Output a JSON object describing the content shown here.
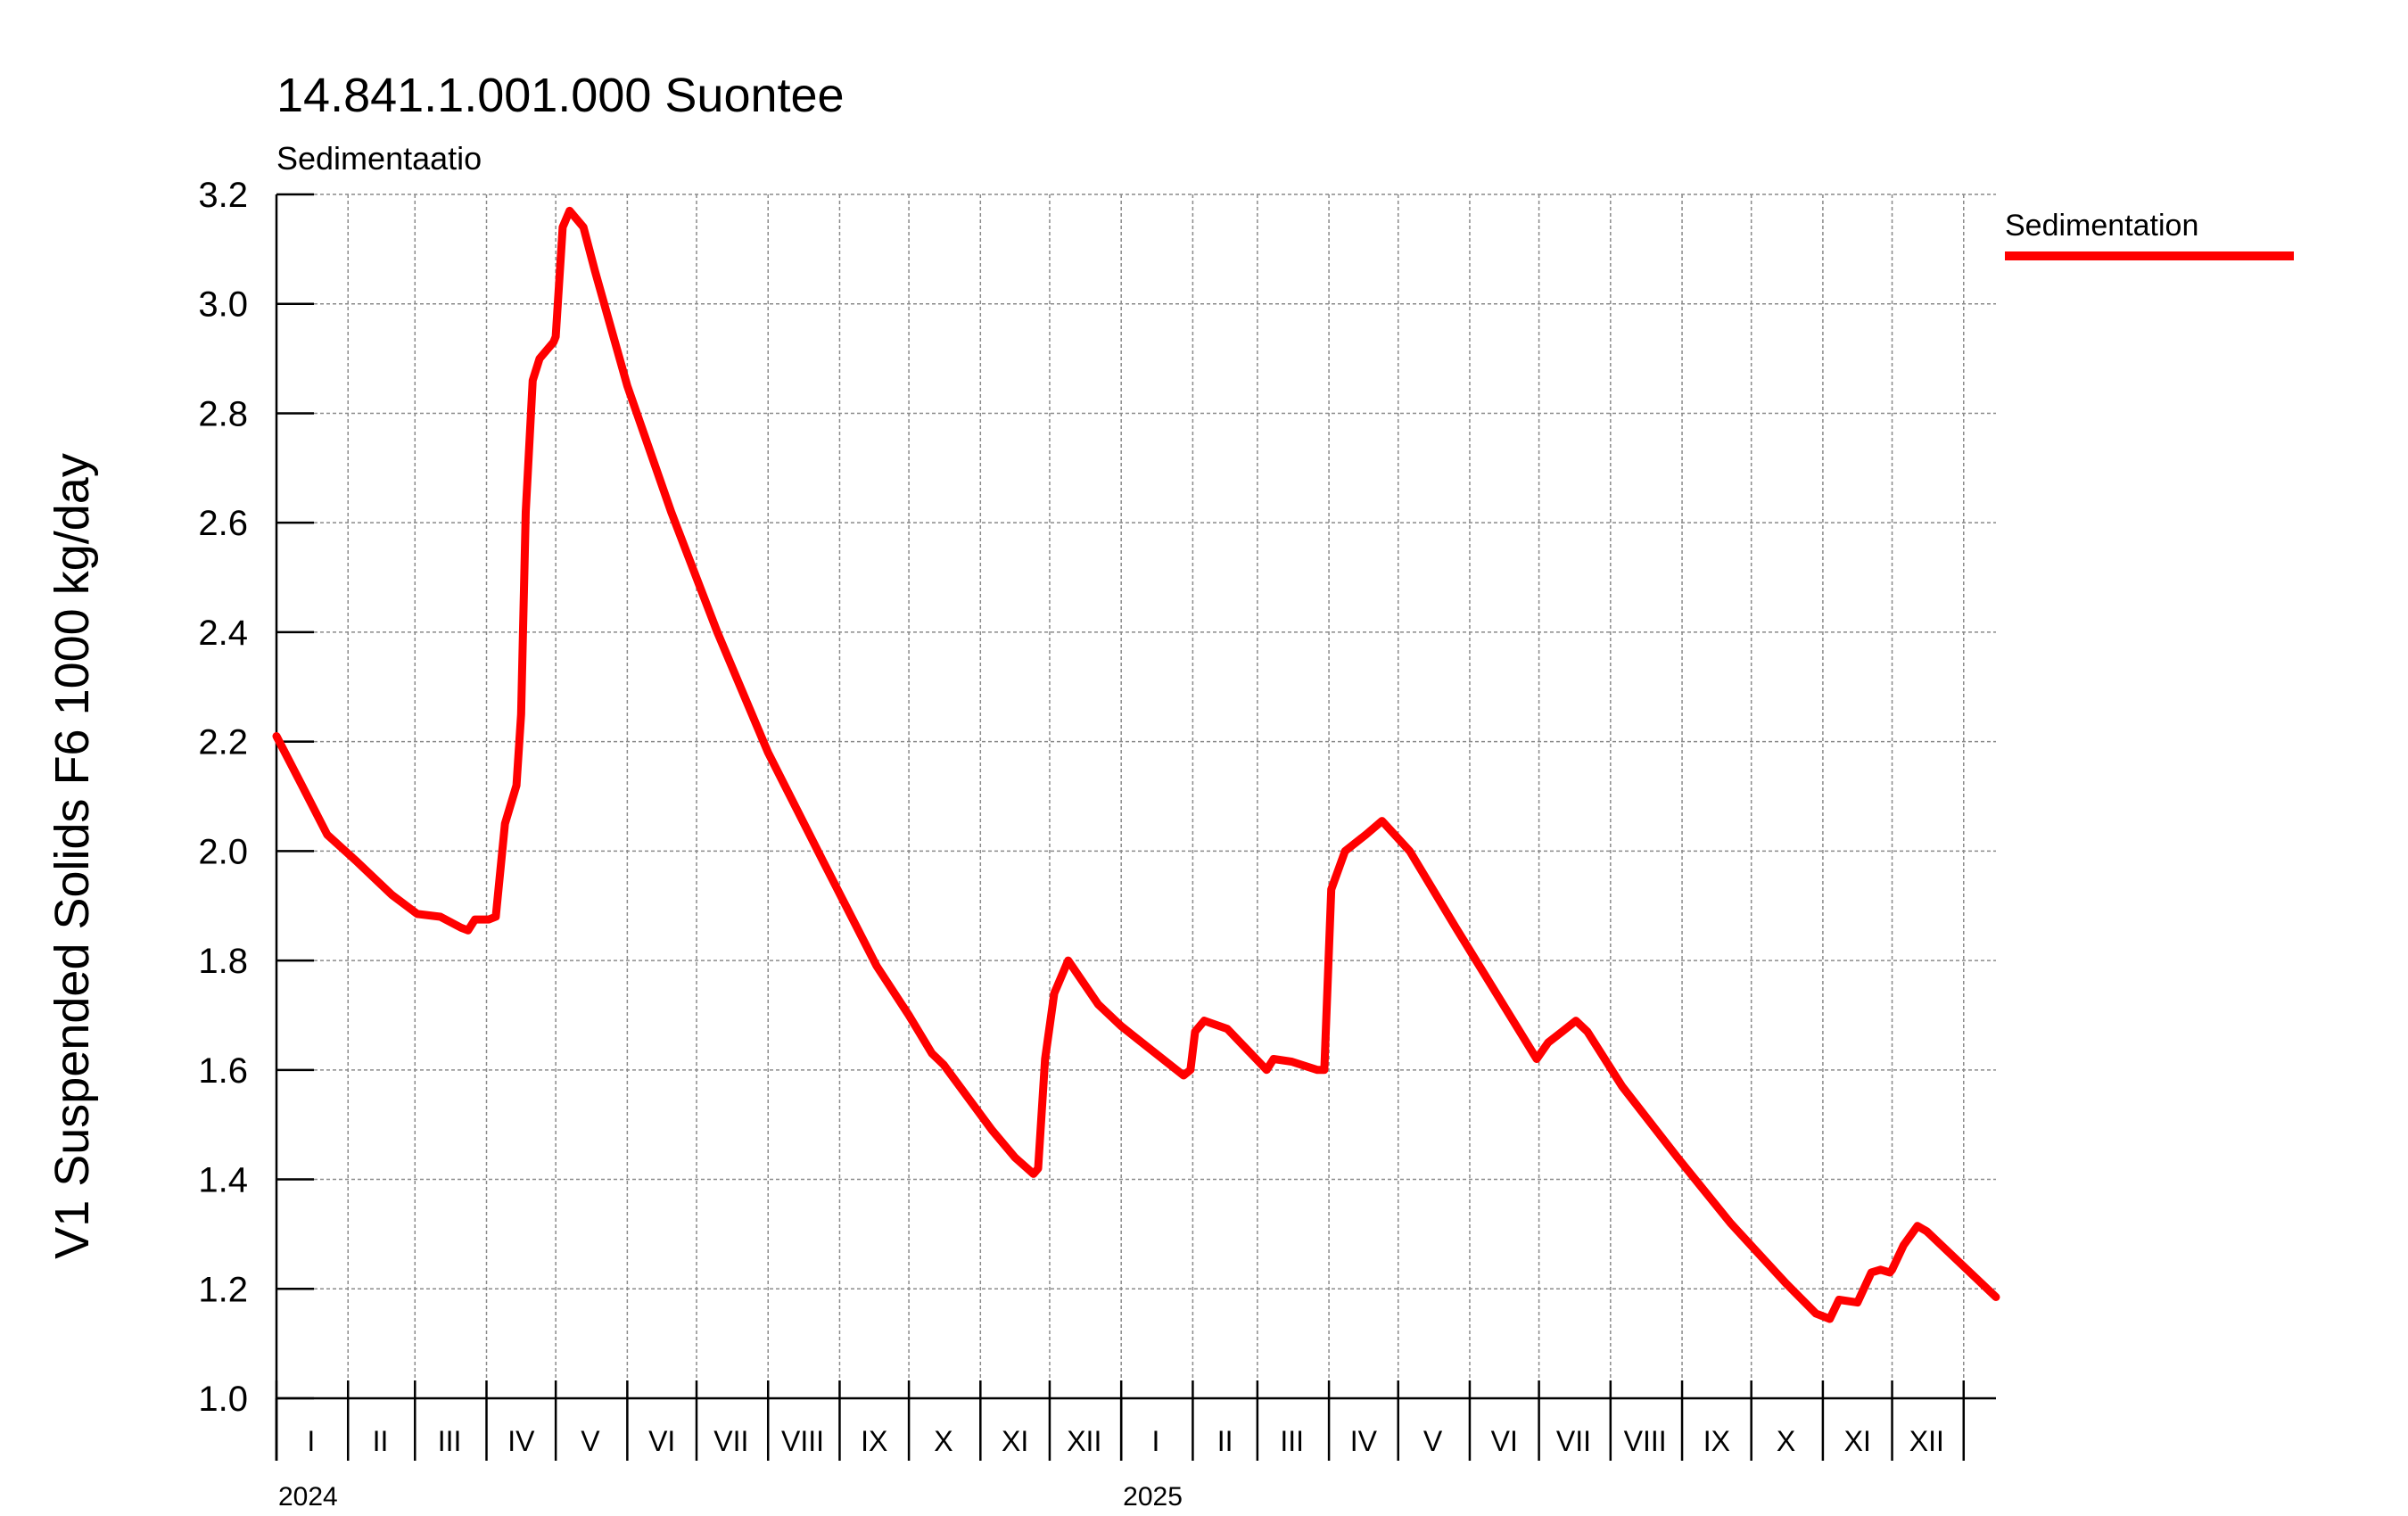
{
  "chart_data": {
    "type": "line",
    "title": "14.841.1.001.000 Suontee",
    "subtitle": "Sedimentaatio",
    "ylabel": "V1 Suspended Solids F6 1000 kg/day",
    "ylim": [
      1.0,
      3.2
    ],
    "yticks": [
      "1.0",
      "1.2",
      "1.4",
      "1.6",
      "1.8",
      "2.0",
      "2.2",
      "2.4",
      "2.6",
      "2.8",
      "3.0",
      "3.2"
    ],
    "xlim": [
      "2024-01-01",
      "2026-01-15"
    ],
    "grid": true,
    "legend_position": "right",
    "years": [
      {
        "label": "2024",
        "date": "2024-01-01"
      },
      {
        "label": "2025",
        "date": "2025-01-01"
      }
    ],
    "months": [
      {
        "label": "I",
        "date": "2024-01-16"
      },
      {
        "label": "II",
        "date": "2024-02-15"
      },
      {
        "label": "III",
        "date": "2024-03-16"
      },
      {
        "label": "IV",
        "date": "2024-04-16"
      },
      {
        "label": "V",
        "date": "2024-05-16"
      },
      {
        "label": "VI",
        "date": "2024-06-16"
      },
      {
        "label": "VII",
        "date": "2024-07-16"
      },
      {
        "label": "VIII",
        "date": "2024-08-16"
      },
      {
        "label": "IX",
        "date": "2024-09-16"
      },
      {
        "label": "X",
        "date": "2024-10-16"
      },
      {
        "label": "XI",
        "date": "2024-11-16"
      },
      {
        "label": "XII",
        "date": "2024-12-16"
      },
      {
        "label": "I",
        "date": "2025-01-16"
      },
      {
        "label": "II",
        "date": "2025-02-15"
      },
      {
        "label": "III",
        "date": "2025-03-16"
      },
      {
        "label": "IV",
        "date": "2025-04-16"
      },
      {
        "label": "V",
        "date": "2025-05-16"
      },
      {
        "label": "VI",
        "date": "2025-06-16"
      },
      {
        "label": "VII",
        "date": "2025-07-16"
      },
      {
        "label": "VIII",
        "date": "2025-08-16"
      },
      {
        "label": "IX",
        "date": "2025-09-16"
      },
      {
        "label": "X",
        "date": "2025-10-16"
      },
      {
        "label": "XI",
        "date": "2025-11-16"
      },
      {
        "label": "XII",
        "date": "2025-12-16"
      }
    ],
    "gridlines_x": [
      "2024-01-01",
      "2024-02-01",
      "2024-03-01",
      "2024-04-01",
      "2024-05-01",
      "2024-06-01",
      "2024-07-01",
      "2024-08-01",
      "2024-09-01",
      "2024-10-01",
      "2024-11-01",
      "2024-12-01",
      "2025-01-01",
      "2025-02-01",
      "2025-03-01",
      "2025-04-01",
      "2025-05-01",
      "2025-06-01",
      "2025-07-01",
      "2025-08-01",
      "2025-09-01",
      "2025-10-01",
      "2025-11-01",
      "2025-12-01",
      "2026-01-01"
    ],
    "series": [
      {
        "name": "Sedimentation",
        "color": "#ff0000",
        "points": [
          [
            "2024-01-01",
            2.21
          ],
          [
            "2024-01-12",
            2.12
          ],
          [
            "2024-01-23",
            2.03
          ],
          [
            "2024-02-05",
            1.98
          ],
          [
            "2024-02-20",
            1.92
          ],
          [
            "2024-03-02",
            1.885
          ],
          [
            "2024-03-12",
            1.88
          ],
          [
            "2024-03-21",
            1.86
          ],
          [
            "2024-03-24",
            1.855
          ],
          [
            "2024-03-27",
            1.875
          ],
          [
            "2024-04-02",
            1.875
          ],
          [
            "2024-04-05",
            1.88
          ],
          [
            "2024-04-09",
            2.05
          ],
          [
            "2024-04-14",
            2.12
          ],
          [
            "2024-04-16",
            2.25
          ],
          [
            "2024-04-18",
            2.62
          ],
          [
            "2024-04-21",
            2.86
          ],
          [
            "2024-04-24",
            2.9
          ],
          [
            "2024-04-30",
            2.93
          ],
          [
            "2024-05-01",
            2.94
          ],
          [
            "2024-05-04",
            3.14
          ],
          [
            "2024-05-07",
            3.17
          ],
          [
            "2024-05-13",
            3.14
          ],
          [
            "2024-05-18",
            3.06
          ],
          [
            "2024-06-01",
            2.85
          ],
          [
            "2024-06-20",
            2.62
          ],
          [
            "2024-07-10",
            2.4
          ],
          [
            "2024-08-01",
            2.18
          ],
          [
            "2024-08-25",
            1.98
          ],
          [
            "2024-09-17",
            1.79
          ],
          [
            "2024-10-01",
            1.7
          ],
          [
            "2024-10-11",
            1.63
          ],
          [
            "2024-10-16",
            1.61
          ],
          [
            "2024-11-06",
            1.49
          ],
          [
            "2024-11-16",
            1.44
          ],
          [
            "2024-11-24",
            1.41
          ],
          [
            "2024-11-26",
            1.42
          ],
          [
            "2024-11-29",
            1.62
          ],
          [
            "2024-12-03",
            1.74
          ],
          [
            "2024-12-09",
            1.8
          ],
          [
            "2024-12-22",
            1.72
          ],
          [
            "2025-01-01",
            1.68
          ],
          [
            "2025-01-28",
            1.59
          ],
          [
            "2025-01-31",
            1.6
          ],
          [
            "2025-02-02",
            1.67
          ],
          [
            "2025-02-06",
            1.69
          ],
          [
            "2025-02-16",
            1.675
          ],
          [
            "2025-03-05",
            1.6
          ],
          [
            "2025-03-08",
            1.62
          ],
          [
            "2025-03-16",
            1.615
          ],
          [
            "2025-03-27",
            1.6
          ],
          [
            "2025-03-30",
            1.6
          ],
          [
            "2025-04-02",
            1.93
          ],
          [
            "2025-04-08",
            2.0
          ],
          [
            "2025-04-17",
            2.03
          ],
          [
            "2025-04-24",
            2.055
          ],
          [
            "2025-05-06",
            2.0
          ],
          [
            "2025-05-26",
            1.86
          ],
          [
            "2025-06-30",
            1.62
          ],
          [
            "2025-07-05",
            1.65
          ],
          [
            "2025-07-11",
            1.67
          ],
          [
            "2025-07-17",
            1.69
          ],
          [
            "2025-07-22",
            1.67
          ],
          [
            "2025-08-06",
            1.57
          ],
          [
            "2025-08-30",
            1.44
          ],
          [
            "2025-09-22",
            1.32
          ],
          [
            "2025-10-16",
            1.21
          ],
          [
            "2025-10-29",
            1.155
          ],
          [
            "2025-11-04",
            1.145
          ],
          [
            "2025-11-08",
            1.18
          ],
          [
            "2025-11-16",
            1.175
          ],
          [
            "2025-11-22",
            1.23
          ],
          [
            "2025-11-26",
            1.235
          ],
          [
            "2025-11-30",
            1.23
          ],
          [
            "2025-12-01",
            1.235
          ],
          [
            "2025-12-06",
            1.28
          ],
          [
            "2025-12-12",
            1.315
          ],
          [
            "2025-12-16",
            1.305
          ],
          [
            "2026-01-15",
            1.185
          ]
        ]
      }
    ]
  }
}
